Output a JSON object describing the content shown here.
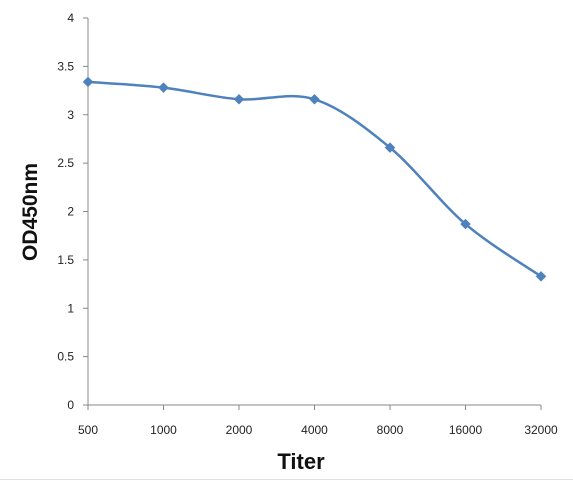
{
  "chart_data": {
    "type": "line",
    "title": "",
    "xlabel": "Titer",
    "ylabel": "OD450nm",
    "categories": [
      "500",
      "1000",
      "2000",
      "4000",
      "8000",
      "16000",
      "32000"
    ],
    "series": [
      {
        "values": [
          3.34,
          3.28,
          3.16,
          3.16,
          2.66,
          1.87,
          1.33
        ],
        "color": "#4f81bd",
        "marker": "diamond",
        "smooth": true
      }
    ],
    "ylim": [
      0,
      4
    ],
    "yticks": [
      "0",
      "0.5",
      "1",
      "1.5",
      "2",
      "2.5",
      "3",
      "3.5",
      "4"
    ],
    "grid": false,
    "legend": "none"
  }
}
